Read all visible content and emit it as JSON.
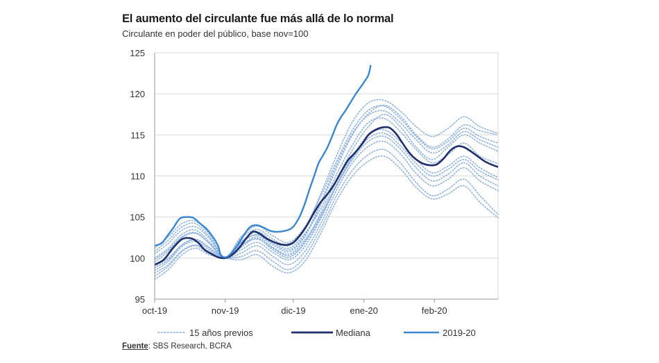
{
  "chart_data": {
    "type": "line",
    "title": "El aumento del circulante fue más allá de lo normal",
    "subtitle": "Circulante en poder del público, base nov=100",
    "source_label": "Fuente",
    "source_text": ": SBS Research, BCRA",
    "x_ticks": [
      "oct-19",
      "nov-19",
      "dic-19",
      "ene-20",
      "feb-20"
    ],
    "x_tick_days": [
      0,
      31,
      61,
      92,
      123
    ],
    "x_range_days": [
      0,
      151
    ],
    "ylim": [
      95,
      125
    ],
    "y_ticks": [
      95,
      100,
      105,
      110,
      115,
      120,
      125
    ],
    "grid": true,
    "legend": {
      "position": "bottom",
      "items": [
        {
          "key": "previos",
          "label": "15 años previos"
        },
        {
          "key": "mediana",
          "label": "Mediana"
        },
        {
          "key": "actual",
          "label": "2019-20"
        }
      ]
    },
    "colors": {
      "previos": "#8fb3e0",
      "mediana": "#1f2f6b",
      "actual": "#3a86cf",
      "grid": "#d9d9d9",
      "axis": "#999999"
    },
    "mediana": [
      [
        0,
        99.2
      ],
      [
        4,
        99.8
      ],
      [
        8,
        101.2
      ],
      [
        12,
        102.3
      ],
      [
        16,
        102.4
      ],
      [
        19,
        101.9
      ],
      [
        22,
        101.0
      ],
      [
        25,
        100.5
      ],
      [
        28,
        100.1
      ],
      [
        31,
        100.0
      ],
      [
        34,
        100.4
      ],
      [
        37,
        101.2
      ],
      [
        40,
        102.3
      ],
      [
        43,
        103.2
      ],
      [
        46,
        103.0
      ],
      [
        49,
        102.4
      ],
      [
        52,
        102.0
      ],
      [
        55,
        101.7
      ],
      [
        58,
        101.6
      ],
      [
        61,
        101.9
      ],
      [
        64,
        102.8
      ],
      [
        67,
        104.0
      ],
      [
        70,
        105.5
      ],
      [
        73,
        106.8
      ],
      [
        76,
        107.8
      ],
      [
        79,
        109.0
      ],
      [
        82,
        110.5
      ],
      [
        85,
        111.9
      ],
      [
        88,
        112.8
      ],
      [
        91,
        113.8
      ],
      [
        94,
        115.0
      ],
      [
        97,
        115.6
      ],
      [
        100,
        115.9
      ],
      [
        103,
        115.9
      ],
      [
        106,
        115.2
      ],
      [
        109,
        114.0
      ],
      [
        112,
        112.8
      ],
      [
        115,
        112.0
      ],
      [
        118,
        111.5
      ],
      [
        121,
        111.3
      ],
      [
        124,
        111.4
      ],
      [
        127,
        112.1
      ],
      [
        130,
        113.1
      ],
      [
        133,
        113.6
      ],
      [
        136,
        113.5
      ],
      [
        139,
        113.0
      ],
      [
        142,
        112.4
      ],
      [
        145,
        111.8
      ],
      [
        148,
        111.4
      ],
      [
        151,
        111.1
      ]
    ],
    "actual": [
      [
        0,
        101.5
      ],
      [
        3,
        101.8
      ],
      [
        5,
        102.5
      ],
      [
        8,
        103.6
      ],
      [
        11,
        104.8
      ],
      [
        14,
        105.0
      ],
      [
        17,
        104.9
      ],
      [
        20,
        104.2
      ],
      [
        23,
        103.5
      ],
      [
        26,
        102.4
      ],
      [
        28,
        101.4
      ],
      [
        29,
        100.4
      ],
      [
        31,
        100.1
      ],
      [
        33,
        100.4
      ],
      [
        36,
        101.4
      ],
      [
        39,
        102.7
      ],
      [
        42,
        103.8
      ],
      [
        45,
        104.0
      ],
      [
        48,
        103.7
      ],
      [
        51,
        103.3
      ],
      [
        54,
        103.2
      ],
      [
        57,
        103.3
      ],
      [
        60,
        103.6
      ],
      [
        62,
        104.2
      ],
      [
        64,
        105.2
      ],
      [
        66,
        106.6
      ],
      [
        68,
        108.3
      ],
      [
        70,
        109.9
      ],
      [
        72,
        111.5
      ],
      [
        74,
        112.5
      ],
      [
        76,
        113.5
      ],
      [
        78,
        114.8
      ],
      [
        80,
        116.2
      ],
      [
        82,
        117.2
      ],
      [
        84,
        118.0
      ],
      [
        86,
        118.9
      ],
      [
        88,
        119.8
      ],
      [
        90,
        120.6
      ],
      [
        92,
        121.4
      ],
      [
        94,
        122.3
      ],
      [
        95,
        123.5
      ]
    ],
    "previos": [
      [
        [
          0,
          97.8
        ],
        [
          6,
          99.0
        ],
        [
          12,
          100.8
        ],
        [
          18,
          101.5
        ],
        [
          24,
          100.6
        ],
        [
          31,
          100.0
        ],
        [
          38,
          101.6
        ],
        [
          45,
          102.3
        ],
        [
          52,
          101.2
        ],
        [
          59,
          100.3
        ],
        [
          66,
          102.0
        ],
        [
          73,
          105.5
        ],
        [
          80,
          109.5
        ],
        [
          87,
          113.2
        ],
        [
          94,
          116.0
        ],
        [
          101,
          117.5
        ],
        [
          108,
          116.0
        ],
        [
          115,
          113.5
        ],
        [
          122,
          112.0
        ],
        [
          129,
          113.5
        ],
        [
          136,
          115.0
        ],
        [
          143,
          114.0
        ],
        [
          151,
          113.0
        ]
      ],
      [
        [
          0,
          98.5
        ],
        [
          6,
          99.6
        ],
        [
          12,
          101.4
        ],
        [
          18,
          102.0
        ],
        [
          24,
          101.0
        ],
        [
          31,
          100.0
        ],
        [
          38,
          101.9
        ],
        [
          45,
          102.8
        ],
        [
          52,
          101.6
        ],
        [
          59,
          100.8
        ],
        [
          66,
          102.6
        ],
        [
          73,
          106.5
        ],
        [
          80,
          111.0
        ],
        [
          87,
          115.0
        ],
        [
          94,
          117.6
        ],
        [
          101,
          118.6
        ],
        [
          108,
          117.3
        ],
        [
          115,
          115.0
        ],
        [
          122,
          113.5
        ],
        [
          129,
          114.5
        ],
        [
          136,
          116.2
        ],
        [
          143,
          115.5
        ],
        [
          151,
          115.0
        ]
      ],
      [
        [
          0,
          99.5
        ],
        [
          6,
          100.8
        ],
        [
          12,
          102.5
        ],
        [
          18,
          103.0
        ],
        [
          24,
          101.8
        ],
        [
          31,
          100.0
        ],
        [
          38,
          102.4
        ],
        [
          45,
          103.5
        ],
        [
          52,
          102.3
        ],
        [
          59,
          101.5
        ],
        [
          66,
          103.5
        ],
        [
          73,
          107.8
        ],
        [
          80,
          112.5
        ],
        [
          87,
          116.6
        ],
        [
          94,
          118.9
        ],
        [
          101,
          119.2
        ],
        [
          108,
          117.9
        ],
        [
          115,
          116.0
        ],
        [
          122,
          114.8
        ],
        [
          129,
          115.8
        ],
        [
          136,
          117.2
        ],
        [
          143,
          116.0
        ],
        [
          151,
          115.2
        ]
      ],
      [
        [
          0,
          100.5
        ],
        [
          6,
          101.8
        ],
        [
          12,
          103.4
        ],
        [
          18,
          103.8
        ],
        [
          24,
          102.4
        ],
        [
          31,
          100.0
        ],
        [
          38,
          102.0
        ],
        [
          45,
          103.2
        ],
        [
          52,
          102.0
        ],
        [
          59,
          101.2
        ],
        [
          66,
          103.0
        ],
        [
          73,
          106.0
        ],
        [
          80,
          110.2
        ],
        [
          87,
          113.8
        ],
        [
          94,
          116.5
        ],
        [
          101,
          117.0
        ],
        [
          108,
          115.4
        ],
        [
          115,
          113.2
        ],
        [
          122,
          111.6
        ],
        [
          129,
          112.6
        ],
        [
          136,
          114.0
        ],
        [
          143,
          112.4
        ],
        [
          151,
          111.5
        ]
      ],
      [
        [
          0,
          101.2
        ],
        [
          6,
          102.6
        ],
        [
          12,
          104.2
        ],
        [
          18,
          104.5
        ],
        [
          24,
          102.9
        ],
        [
          31,
          100.0
        ],
        [
          38,
          101.5
        ],
        [
          45,
          102.6
        ],
        [
          52,
          101.3
        ],
        [
          59,
          100.5
        ],
        [
          66,
          102.2
        ],
        [
          73,
          105.2
        ],
        [
          80,
          109.0
        ],
        [
          87,
          112.4
        ],
        [
          94,
          115.0
        ],
        [
          101,
          115.6
        ],
        [
          108,
          114.2
        ],
        [
          115,
          112.0
        ],
        [
          122,
          110.4
        ],
        [
          129,
          111.2
        ],
        [
          136,
          112.4
        ],
        [
          143,
          111.0
        ],
        [
          151,
          109.8
        ]
      ],
      [
        [
          0,
          99.0
        ],
        [
          6,
          100.0
        ],
        [
          12,
          101.6
        ],
        [
          18,
          102.2
        ],
        [
          24,
          101.2
        ],
        [
          31,
          100.0
        ],
        [
          38,
          100.6
        ],
        [
          45,
          101.5
        ],
        [
          52,
          100.2
        ],
        [
          59,
          99.2
        ],
        [
          66,
          100.8
        ],
        [
          73,
          104.2
        ],
        [
          80,
          108.3
        ],
        [
          87,
          111.6
        ],
        [
          94,
          113.6
        ],
        [
          101,
          114.2
        ],
        [
          108,
          112.7
        ],
        [
          115,
          110.3
        ],
        [
          122,
          108.8
        ],
        [
          129,
          109.6
        ],
        [
          136,
          111.0
        ],
        [
          143,
          109.4
        ],
        [
          151,
          108.2
        ]
      ],
      [
        [
          0,
          98.2
        ],
        [
          6,
          99.2
        ],
        [
          12,
          100.9
        ],
        [
          18,
          101.6
        ],
        [
          24,
          100.8
        ],
        [
          31,
          100.0
        ],
        [
          38,
          100.2
        ],
        [
          45,
          100.9
        ],
        [
          52,
          99.6
        ],
        [
          59,
          98.6
        ],
        [
          66,
          100.2
        ],
        [
          73,
          103.6
        ],
        [
          80,
          107.6
        ],
        [
          87,
          110.7
        ],
        [
          94,
          112.6
        ],
        [
          101,
          113.2
        ],
        [
          108,
          111.6
        ],
        [
          115,
          109.2
        ],
        [
          122,
          107.6
        ],
        [
          129,
          108.4
        ],
        [
          136,
          109.6
        ],
        [
          143,
          107.6
        ],
        [
          151,
          105.3
        ]
      ],
      [
        [
          0,
          100.0
        ],
        [
          6,
          101.2
        ],
        [
          12,
          102.9
        ],
        [
          18,
          103.4
        ],
        [
          24,
          102.0
        ],
        [
          31,
          100.0
        ],
        [
          38,
          101.8
        ],
        [
          45,
          102.9
        ],
        [
          52,
          101.8
        ],
        [
          59,
          101.0
        ],
        [
          66,
          102.8
        ],
        [
          73,
          106.8
        ],
        [
          80,
          111.4
        ],
        [
          87,
          115.2
        ],
        [
          94,
          117.4
        ],
        [
          101,
          117.9
        ],
        [
          108,
          116.5
        ],
        [
          115,
          114.4
        ],
        [
          122,
          112.8
        ],
        [
          129,
          113.8
        ],
        [
          136,
          115.4
        ],
        [
          143,
          114.4
        ],
        [
          151,
          113.5
        ]
      ],
      [
        [
          0,
          98.8
        ],
        [
          6,
          99.8
        ],
        [
          12,
          101.6
        ],
        [
          18,
          102.3
        ],
        [
          24,
          101.3
        ],
        [
          31,
          100.0
        ],
        [
          38,
          101.0
        ],
        [
          45,
          101.9
        ],
        [
          52,
          100.7
        ],
        [
          59,
          99.8
        ],
        [
          66,
          101.4
        ],
        [
          73,
          104.8
        ],
        [
          80,
          108.8
        ],
        [
          87,
          112.0
        ],
        [
          94,
          114.2
        ],
        [
          101,
          114.8
        ],
        [
          108,
          113.3
        ],
        [
          115,
          111.0
        ],
        [
          122,
          109.4
        ],
        [
          129,
          110.2
        ],
        [
          136,
          111.6
        ],
        [
          143,
          110.0
        ],
        [
          151,
          108.8
        ]
      ],
      [
        [
          0,
          97.4
        ],
        [
          6,
          98.6
        ],
        [
          12,
          100.4
        ],
        [
          18,
          101.2
        ],
        [
          24,
          100.4
        ],
        [
          31,
          100.0
        ],
        [
          38,
          99.8
        ],
        [
          45,
          100.4
        ],
        [
          52,
          99.0
        ],
        [
          59,
          98.2
        ],
        [
          66,
          99.6
        ],
        [
          73,
          103.0
        ],
        [
          80,
          107.0
        ],
        [
          87,
          110.0
        ],
        [
          94,
          111.8
        ],
        [
          101,
          112.4
        ],
        [
          108,
          110.9
        ],
        [
          115,
          108.6
        ],
        [
          122,
          107.2
        ],
        [
          129,
          107.8
        ],
        [
          136,
          108.8
        ],
        [
          143,
          106.8
        ],
        [
          151,
          104.9
        ]
      ],
      [
        [
          0,
          99.8
        ],
        [
          6,
          101.0
        ],
        [
          12,
          102.6
        ],
        [
          18,
          103.1
        ],
        [
          24,
          101.8
        ],
        [
          31,
          100.0
        ],
        [
          38,
          102.6
        ],
        [
          45,
          103.9
        ],
        [
          52,
          102.7
        ],
        [
          59,
          101.9
        ],
        [
          66,
          103.8
        ],
        [
          73,
          107.5
        ],
        [
          80,
          111.8
        ],
        [
          87,
          115.6
        ],
        [
          94,
          118.0
        ],
        [
          101,
          118.5
        ],
        [
          108,
          117.0
        ],
        [
          115,
          114.8
        ],
        [
          122,
          113.3
        ],
        [
          129,
          114.2
        ],
        [
          136,
          115.8
        ],
        [
          143,
          114.8
        ],
        [
          151,
          114.0
        ]
      ],
      [
        [
          0,
          100.8
        ],
        [
          6,
          102.2
        ],
        [
          12,
          103.8
        ],
        [
          18,
          104.2
        ],
        [
          24,
          102.6
        ],
        [
          31,
          100.0
        ],
        [
          38,
          101.3
        ],
        [
          45,
          102.4
        ],
        [
          52,
          101.0
        ],
        [
          59,
          100.1
        ],
        [
          66,
          101.8
        ],
        [
          73,
          105.0
        ],
        [
          80,
          108.8
        ],
        [
          87,
          112.2
        ],
        [
          94,
          114.6
        ],
        [
          101,
          115.2
        ],
        [
          108,
          113.7
        ],
        [
          115,
          111.5
        ],
        [
          122,
          110.0
        ],
        [
          129,
          110.8
        ],
        [
          136,
          112.0
        ],
        [
          143,
          110.6
        ],
        [
          151,
          109.5
        ]
      ]
    ]
  }
}
